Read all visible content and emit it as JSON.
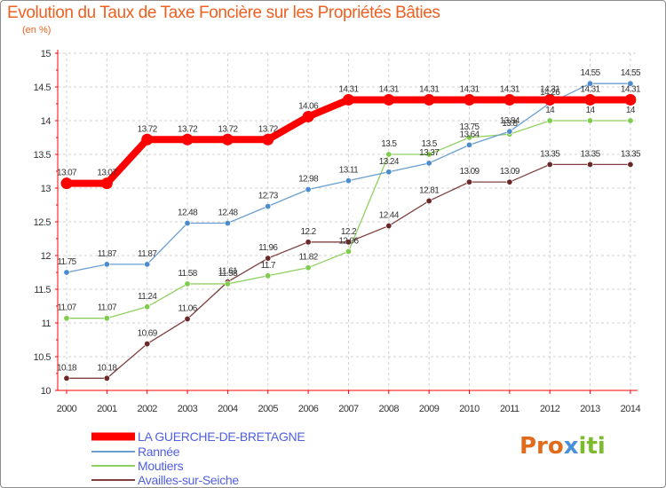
{
  "title": "Evolution du Taux de Taxe Foncière sur les Propriétés Bâties",
  "unit": "(en %)",
  "logo": {
    "part1": "Pro",
    "part2": "x",
    "part3": "iti"
  },
  "chart_data": {
    "type": "line",
    "title": "Evolution du Taux de Taxe Foncière sur les Propriétés Bâties",
    "ylabel": "(en %)",
    "xlabel": "",
    "x": [
      "2000",
      "2001",
      "2002",
      "2003",
      "2004",
      "2005",
      "2006",
      "2007",
      "2008",
      "2009",
      "2010",
      "2011",
      "2012",
      "2013",
      "2014"
    ],
    "ylim": [
      10,
      15
    ],
    "yticks": [
      "10",
      "10.5",
      "11",
      "11.5",
      "12",
      "12.5",
      "13",
      "13.5",
      "14",
      "14.5",
      "15"
    ],
    "grid": true,
    "legend": "bottom-left",
    "series": [
      {
        "name": "LA GUERCHE-DE-BRETAGNE",
        "color": "#ff0000",
        "emphasis": true,
        "values": [
          13.07,
          13.07,
          13.72,
          13.72,
          13.72,
          13.72,
          14.06,
          14.31,
          14.31,
          14.31,
          14.31,
          14.31,
          14.31,
          14.31,
          14.31
        ],
        "labels": [
          "13.07",
          "13.07",
          "13.72",
          "13.72",
          "13.72",
          "13.72",
          "14.06",
          "14.31",
          "14.31",
          "14.31",
          "14.31",
          "14.31",
          "14.31",
          "14.31",
          "14.31"
        ]
      },
      {
        "name": "Rannée",
        "color": "#6a9fd0",
        "point_color": "#4a8ccc",
        "values": [
          11.75,
          11.87,
          11.87,
          12.48,
          12.48,
          12.73,
          12.98,
          13.11,
          13.24,
          13.37,
          13.64,
          13.84,
          14.26,
          14.55,
          14.55
        ],
        "labels": [
          "11.75",
          "11.87",
          "11.87",
          "12.48",
          "12.48",
          "12.73",
          "12.98",
          "13.11",
          "13.24",
          "13.37",
          "13.64",
          "13.84",
          "14.26",
          "14.55",
          "14.55"
        ]
      },
      {
        "name": "Moutiers",
        "color": "#90d060",
        "point_color": "#80cc4c",
        "values": [
          11.07,
          11.07,
          11.24,
          11.58,
          11.58,
          11.7,
          11.82,
          12.06,
          13.5,
          13.5,
          13.75,
          13.8,
          14,
          14,
          14
        ],
        "labels": [
          "11.07",
          "11.07",
          "11.24",
          "11.58",
          "11.58",
          "11.7",
          "11.82",
          "12.06",
          "13.5",
          "13.5",
          "13.75",
          "13.8",
          "14",
          "14",
          "14"
        ]
      },
      {
        "name": "Availles-sur-Seiche",
        "color": "#804040",
        "point_color": "#6a2828",
        "values": [
          10.18,
          10.18,
          10.69,
          11.06,
          11.61,
          11.96,
          12.2,
          12.2,
          12.44,
          12.81,
          13.09,
          13.09,
          13.35,
          13.35,
          13.35
        ],
        "labels": [
          "10.18",
          "10.18",
          "10.69",
          "11.06",
          "11.61",
          "11.96",
          "12.2",
          "12.2",
          "12.44",
          "12.81",
          "13.09",
          "13.09",
          "13.35",
          "13.35",
          "13.35"
        ]
      }
    ]
  }
}
